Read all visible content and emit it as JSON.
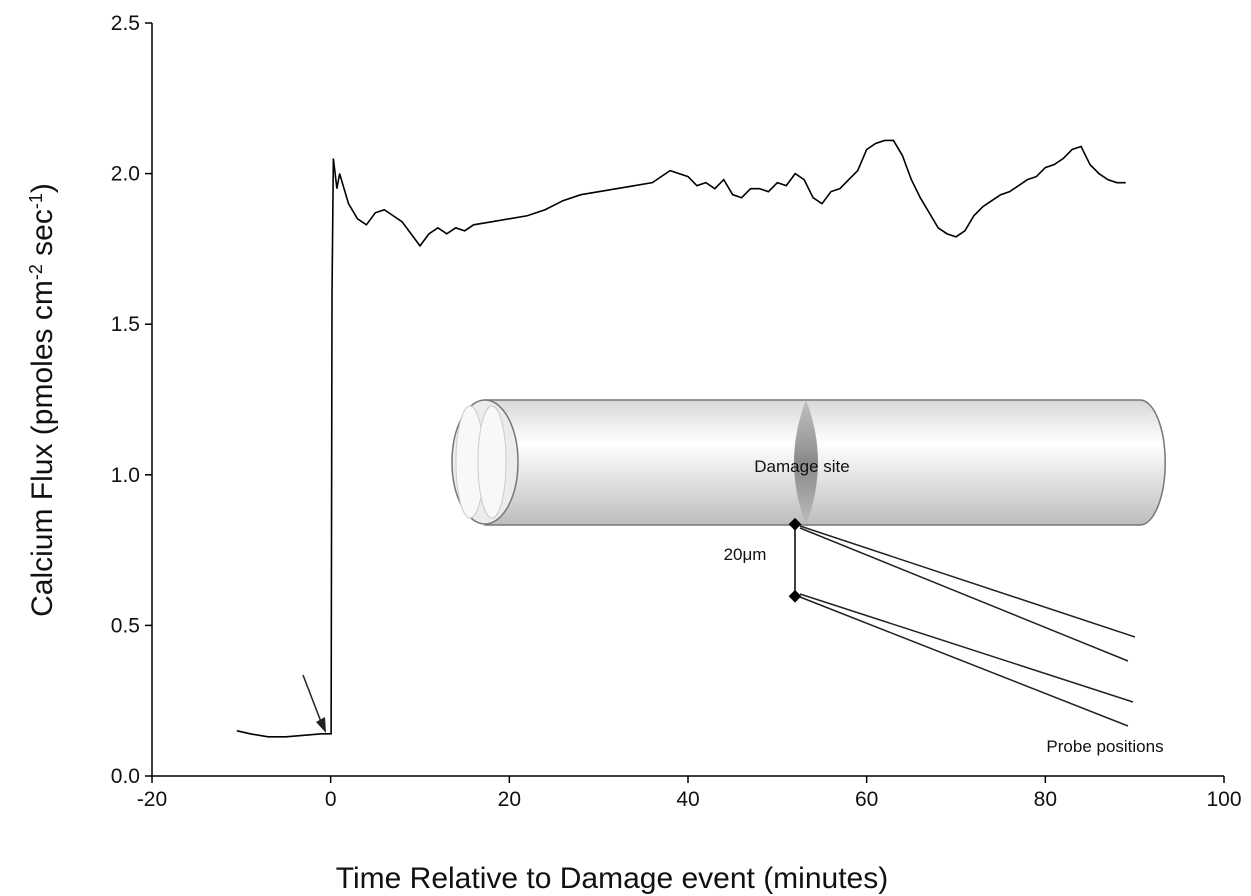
{
  "chart_data": {
    "type": "line",
    "ylabel": [
      "Calcium Flux (pmoles cm",
      "-2",
      " sec",
      "-1",
      ")"
    ],
    "xlabel": "Time Relative to Damage event (minutes)",
    "xlim": [
      -20,
      100
    ],
    "xticks": [
      -20,
      0,
      20,
      40,
      60,
      80,
      100
    ],
    "ylim": [
      0,
      2.5
    ],
    "yticks": [
      {
        "value": 0,
        "label": "0.0"
      },
      0.5,
      {
        "value": 1,
        "label": "1.0"
      },
      1.5,
      {
        "value": 2,
        "label": "2.0"
      },
      2.5
    ],
    "x": [
      -10.5,
      -9,
      -7,
      -5,
      -3,
      -1,
      -0.1,
      0.05,
      0.15,
      0.3,
      0.7,
      1,
      2,
      3,
      4,
      5,
      6,
      7,
      8,
      9,
      10,
      11,
      12,
      13,
      14,
      15,
      16,
      18,
      20,
      22,
      24,
      26,
      28,
      30,
      32,
      34,
      36,
      38,
      40,
      41,
      42,
      43,
      44,
      45,
      46,
      47,
      48,
      49,
      50,
      51,
      52,
      53,
      54,
      55,
      56,
      57,
      58,
      59,
      60,
      61,
      62,
      63,
      64,
      65,
      66,
      67,
      68,
      69,
      70,
      71,
      72,
      73,
      74,
      75,
      76,
      77,
      78,
      79,
      80,
      81,
      82,
      83,
      84,
      85,
      86,
      87,
      88,
      89
    ],
    "series": [
      {
        "color": "#000000",
        "values": [
          0.15,
          0.14,
          0.13,
          0.13,
          0.135,
          0.14,
          0.14,
          0.14,
          1.6,
          2.05,
          1.95,
          2.0,
          1.9,
          1.85,
          1.83,
          1.87,
          1.88,
          1.86,
          1.84,
          1.8,
          1.76,
          1.8,
          1.82,
          1.8,
          1.82,
          1.81,
          1.83,
          1.84,
          1.85,
          1.86,
          1.88,
          1.91,
          1.93,
          1.94,
          1.95,
          1.96,
          1.97,
          2.01,
          1.99,
          1.96,
          1.97,
          1.95,
          1.98,
          1.93,
          1.92,
          1.95,
          1.95,
          1.94,
          1.97,
          1.96,
          2.0,
          1.98,
          1.92,
          1.9,
          1.94,
          1.95,
          1.98,
          2.01,
          2.08,
          2.1,
          2.11,
          2.11,
          2.06,
          1.98,
          1.92,
          1.87,
          1.82,
          1.8,
          1.79,
          1.81,
          1.86,
          1.89,
          1.91,
          1.93,
          1.94,
          1.96,
          1.98,
          1.99,
          2.02,
          2.03,
          2.05,
          2.08,
          2.09,
          2.03,
          2.0,
          1.98,
          1.97,
          1.97
        ]
      }
    ],
    "annotations": [
      "Damage site",
      "20μm",
      "Probe positions"
    ]
  }
}
